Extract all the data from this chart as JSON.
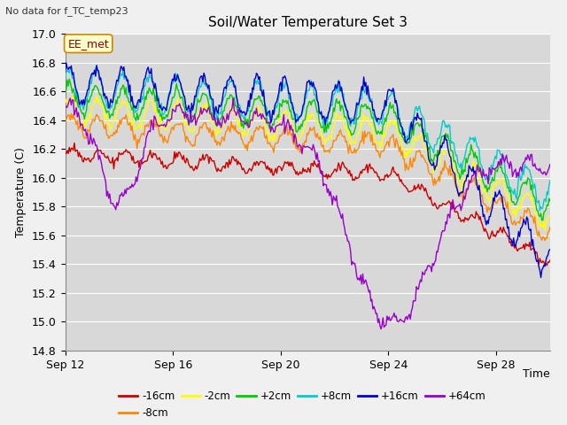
{
  "title": "Soil/Water Temperature Set 3",
  "ylabel": "Temperature (C)",
  "xlabel": "Time",
  "top_left_note": "No data for f_TC_temp23",
  "annotation_label": "EE_met",
  "ylim": [
    14.8,
    17.0
  ],
  "yticks": [
    14.8,
    15.0,
    15.2,
    15.4,
    15.6,
    15.8,
    16.0,
    16.2,
    16.4,
    16.6,
    16.8,
    17.0
  ],
  "xtick_labels": [
    "Sep 12",
    "Sep 16",
    "Sep 20",
    "Sep 24",
    "Sep 28"
  ],
  "series_labels": [
    "-16cm",
    "-8cm",
    "-2cm",
    "+2cm",
    "+8cm",
    "+16cm",
    "+64cm"
  ],
  "series_colors": [
    "#cc0000",
    "#ff8800",
    "#ffff00",
    "#00cc00",
    "#00cccc",
    "#0000cc",
    "#9900cc"
  ],
  "fig_bg_color": "#f0f0f0",
  "plot_bg_color": "#d8d8d8",
  "grid_color": "#ffffff",
  "n_points": 480
}
